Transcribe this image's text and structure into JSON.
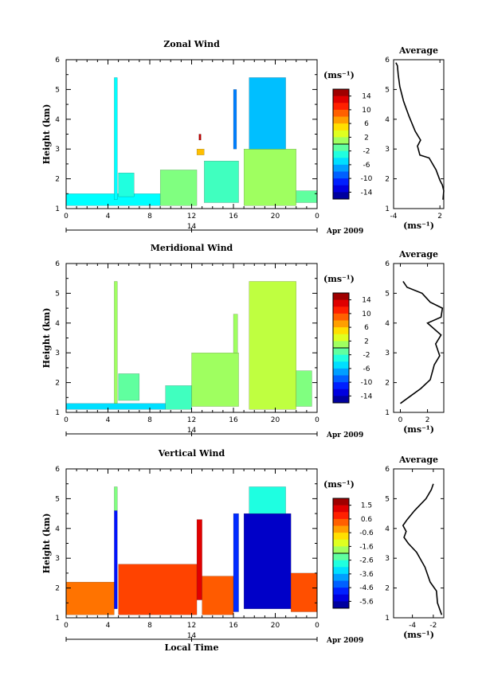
{
  "chart_data": [
    {
      "type": "heatmap",
      "title": "Zonal Wind",
      "ylabel": "Height (km)",
      "ylim": [
        1,
        6
      ],
      "yticks": [
        "1",
        "2",
        "3",
        "4",
        "5",
        "6"
      ],
      "xlim": [
        0,
        24
      ],
      "xticks": [
        "0",
        "4",
        "8",
        "12",
        "16",
        "20",
        "0"
      ],
      "date_tick": "14",
      "date_label": "Apr 2009",
      "colorbar": {
        "unit": "(ms⁻¹)",
        "ticks": [
          "14",
          "10",
          "6",
          "2",
          "-2",
          "-6",
          "-10",
          "-14"
        ],
        "range": [
          -16,
          16
        ]
      },
      "data_blocks": [
        {
          "t": [
            0.0,
            9.0
          ],
          "h": [
            1.1,
            1.5
          ],
          "v": -4
        },
        {
          "t": [
            4.6,
            4.9
          ],
          "h": [
            1.3,
            5.4
          ],
          "v": -4
        },
        {
          "t": [
            5.0,
            6.5
          ],
          "h": [
            1.4,
            2.2
          ],
          "v": -3
        },
        {
          "t": [
            9.0,
            12.5
          ],
          "h": [
            1.1,
            2.3
          ],
          "v": 0
        },
        {
          "t": [
            12.5,
            13.2
          ],
          "h": [
            2.8,
            3.0
          ],
          "v": 6
        },
        {
          "t": [
            12.7,
            12.9
          ],
          "h": [
            3.3,
            3.5
          ],
          "v": 14
        },
        {
          "t": [
            13.2,
            16.5
          ],
          "h": [
            1.2,
            2.6
          ],
          "v": -2
        },
        {
          "t": [
            16.0,
            16.3
          ],
          "h": [
            3.0,
            5.0
          ],
          "v": -8
        },
        {
          "t": [
            17.0,
            22.0
          ],
          "h": [
            1.1,
            3.0
          ],
          "v": 1
        },
        {
          "t": [
            17.5,
            21.0
          ],
          "h": [
            3.0,
            5.4
          ],
          "v": -6
        },
        {
          "t": [
            22.0,
            24.0
          ],
          "h": [
            1.2,
            1.6
          ],
          "v": -1
        }
      ]
    },
    {
      "type": "heatmap",
      "title": "Meridional Wind",
      "ylabel": "Height (km)",
      "ylim": [
        1,
        6
      ],
      "yticks": [
        "1",
        "2",
        "3",
        "4",
        "5",
        "6"
      ],
      "xlim": [
        0,
        24
      ],
      "xticks": [
        "0",
        "4",
        "8",
        "12",
        "16",
        "20",
        "0"
      ],
      "date_tick": "14",
      "date_label": "Apr 2009",
      "colorbar": {
        "unit": "(ms⁻¹)",
        "ticks": [
          "14",
          "10",
          "6",
          "2",
          "-2",
          "-6",
          "-10",
          "-14"
        ],
        "range": [
          -16,
          16
        ]
      },
      "data_blocks": [
        {
          "t": [
            0.0,
            9.5
          ],
          "h": [
            1.1,
            1.3
          ],
          "v": -5
        },
        {
          "t": [
            4.6,
            4.9
          ],
          "h": [
            1.3,
            5.4
          ],
          "v": 1
        },
        {
          "t": [
            5.0,
            7.0
          ],
          "h": [
            1.4,
            2.3
          ],
          "v": -1
        },
        {
          "t": [
            9.5,
            12.0
          ],
          "h": [
            1.1,
            1.9
          ],
          "v": -2
        },
        {
          "t": [
            12.0,
            16.5
          ],
          "h": [
            1.2,
            3.0
          ],
          "v": 1
        },
        {
          "t": [
            16.0,
            16.4
          ],
          "h": [
            3.0,
            4.3
          ],
          "v": 1
        },
        {
          "t": [
            17.5,
            22.0
          ],
          "h": [
            1.1,
            5.4
          ],
          "v": 2
        },
        {
          "t": [
            22.0,
            23.5
          ],
          "h": [
            1.2,
            2.4
          ],
          "v": 0
        }
      ]
    },
    {
      "type": "heatmap",
      "title": "Vertical Wind",
      "xlabel": "Local Time",
      "ylabel": "Height (km)",
      "ylim": [
        1,
        6
      ],
      "yticks": [
        "1",
        "2",
        "3",
        "4",
        "5",
        "6"
      ],
      "xlim": [
        0,
        24
      ],
      "xticks": [
        "0",
        "4",
        "8",
        "12",
        "16",
        "20",
        "0"
      ],
      "date_tick": "14",
      "date_label": "Apr 2009",
      "colorbar": {
        "unit": "(ms⁻¹)",
        "ticks": [
          "1.5",
          "0.6",
          "-0.6",
          "-1.6",
          "-2.6",
          "-3.6",
          "-4.6",
          "-5.6"
        ],
        "range": [
          -6.2,
          2.2
        ]
      },
      "data_blocks": [
        {
          "t": [
            0.0,
            4.6
          ],
          "h": [
            1.1,
            2.2
          ],
          "v": 0.2
        },
        {
          "t": [
            4.6,
            4.9
          ],
          "h": [
            1.3,
            4.6
          ],
          "v": -5.0
        },
        {
          "t": [
            4.6,
            4.9
          ],
          "h": [
            4.6,
            5.4
          ],
          "v": -2.0
        },
        {
          "t": [
            5.0,
            12.5
          ],
          "h": [
            1.1,
            2.8
          ],
          "v": 0.6
        },
        {
          "t": [
            12.5,
            13.0
          ],
          "h": [
            1.6,
            4.3
          ],
          "v": 1.4
        },
        {
          "t": [
            13.0,
            16.0
          ],
          "h": [
            1.1,
            2.4
          ],
          "v": 0.4
        },
        {
          "t": [
            16.0,
            16.5
          ],
          "h": [
            1.2,
            4.5
          ],
          "v": -4.8
        },
        {
          "t": [
            17.0,
            21.5
          ],
          "h": [
            1.3,
            4.5
          ],
          "v": -5.6
        },
        {
          "t": [
            17.5,
            21.0
          ],
          "h": [
            4.5,
            5.4
          ],
          "v": -2.8
        },
        {
          "t": [
            21.5,
            24.0
          ],
          "h": [
            1.2,
            2.5
          ],
          "v": 0.5
        }
      ]
    },
    {
      "type": "line",
      "title": "Average",
      "xlabel": "(ms⁻¹)",
      "xlim": [
        -4,
        2.5
      ],
      "xticks": [
        "-4",
        "2"
      ],
      "ylim": [
        1,
        6
      ],
      "yticks": [
        "1",
        "2",
        "3",
        "4",
        "5",
        "6"
      ],
      "x": [
        2.4,
        2.5,
        2.3,
        2.0,
        1.5,
        0.6,
        -0.6,
        -0.9,
        -0.5,
        -1.2,
        -2.0,
        -2.7,
        -3.2,
        -3.4,
        -3.5,
        -3.7
      ],
      "y": [
        1.3,
        1.6,
        1.8,
        1.95,
        2.3,
        2.7,
        2.8,
        3.1,
        3.3,
        3.6,
        4.1,
        4.6,
        5.1,
        5.5,
        5.8,
        5.9
      ]
    },
    {
      "type": "line",
      "title": "Average",
      "xlabel": "(ms⁻¹)",
      "xlim": [
        -0.5,
        3.2
      ],
      "xticks": [
        "0",
        "2"
      ],
      "ylim": [
        1,
        6
      ],
      "yticks": [
        "1",
        "2",
        "3",
        "4",
        "5",
        "6"
      ],
      "x": [
        0.0,
        0.6,
        1.5,
        2.2,
        2.5,
        2.9,
        2.6,
        3.0,
        2.0,
        3.0,
        3.1,
        2.2,
        1.6,
        0.5,
        0.2
      ],
      "y": [
        1.3,
        1.5,
        1.8,
        2.1,
        2.6,
        2.9,
        3.3,
        3.6,
        4.0,
        4.2,
        4.5,
        4.7,
        5.0,
        5.2,
        5.4
      ]
    },
    {
      "type": "line",
      "title": "Average",
      "xlabel": "(ms⁻¹)",
      "xlim": [
        -5.8,
        -1.0
      ],
      "xticks": [
        "-4",
        "-2"
      ],
      "ylim": [
        1,
        6
      ],
      "yticks": [
        "1",
        "2",
        "3",
        "4",
        "5",
        "6"
      ],
      "x": [
        -1.2,
        -1.6,
        -1.7,
        -2.3,
        -2.8,
        -3.6,
        -4.4,
        -4.8,
        -4.6,
        -4.9,
        -4.5,
        -3.8,
        -2.7,
        -2.2,
        -2.0
      ],
      "y": [
        1.1,
        1.5,
        1.9,
        2.2,
        2.7,
        3.2,
        3.5,
        3.7,
        3.9,
        4.1,
        4.3,
        4.6,
        5.0,
        5.3,
        5.5
      ]
    }
  ]
}
